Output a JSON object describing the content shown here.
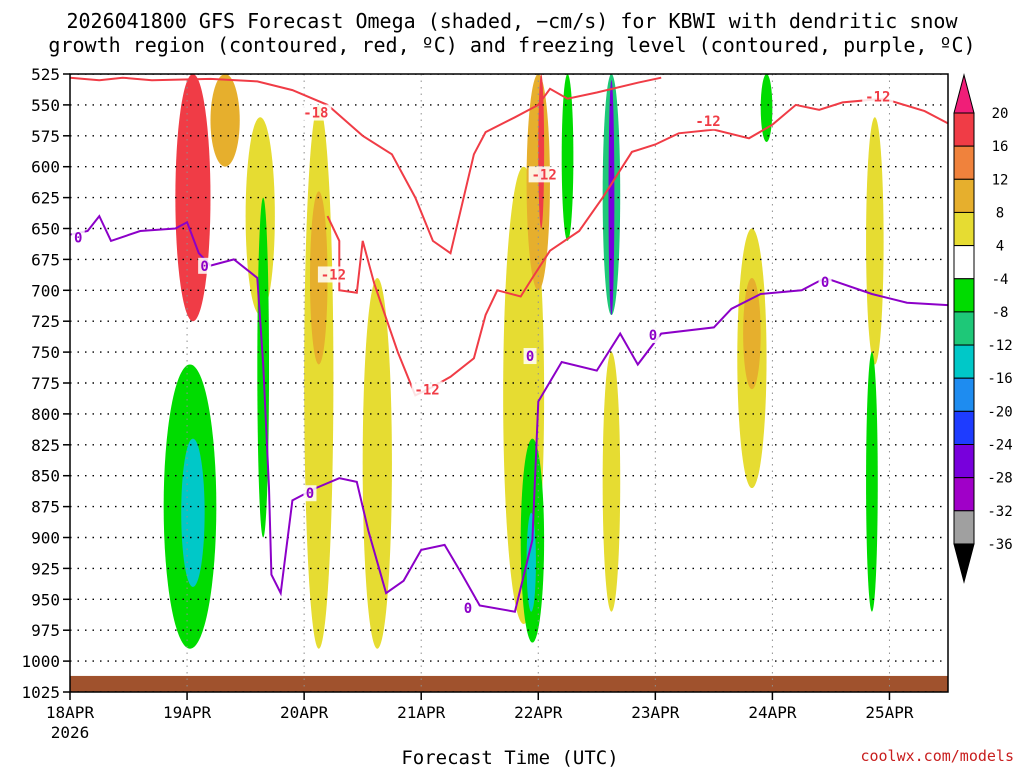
{
  "chart_data": {
    "type": "heatmap",
    "title_line1": "2026041800 GFS Forecast Omega (shaded, −cm/s) for KBWI with dendritic snow",
    "title_line2": "growth region (contoured, red, ºC) and freezing level (contoured, purple, ºC)",
    "xlabel": "Forecast Time (UTC)",
    "credit": "coolwx.com/models",
    "x_start_label": "18APR",
    "x_start_year": "2026",
    "x_ticks": [
      "19APR",
      "20APR",
      "21APR",
      "22APR",
      "23APR",
      "24APR",
      "25APR"
    ],
    "x_range_days": [
      0,
      7.5
    ],
    "y_ticks": [
      525,
      550,
      575,
      600,
      625,
      650,
      675,
      700,
      725,
      750,
      775,
      800,
      825,
      850,
      875,
      900,
      925,
      950,
      975,
      1000,
      1025
    ],
    "y_range_hpa": [
      525,
      1025
    ],
    "colorbar": {
      "labels": [
        "20",
        "16",
        "12",
        "8",
        "4",
        "-4",
        "-8",
        "-12",
        "-16",
        "-20",
        "-24",
        "-28",
        "-32",
        "-36"
      ],
      "bands": [
        {
          "min": 16,
          "max": 20,
          "color": "#f03c46"
        },
        {
          "min": 12,
          "max": 16,
          "color": "#f0823c"
        },
        {
          "min": 8,
          "max": 12,
          "color": "#e6af2d"
        },
        {
          "min": 4,
          "max": 8,
          "color": "#e6dc32"
        },
        {
          "min": -4,
          "max": 4,
          "color": "#ffffff"
        },
        {
          "min": -8,
          "max": -4,
          "color": "#00dc00"
        },
        {
          "min": -12,
          "max": -8,
          "color": "#1ec878"
        },
        {
          "min": -16,
          "max": -12,
          "color": "#00c8c8"
        },
        {
          "min": -20,
          "max": -16,
          "color": "#1e8cf0"
        },
        {
          "min": -24,
          "max": -20,
          "color": "#1e3cff"
        },
        {
          "min": -28,
          "max": -24,
          "color": "#7800dc"
        },
        {
          "min": -32,
          "max": -28,
          "color": "#a000c8"
        },
        {
          "min": -36,
          "max": -32,
          "color": "#a0a0a0"
        }
      ],
      "top_arrow_color": "#f01e78",
      "bottom_arrow_color": "#000000"
    },
    "colors": {
      "dgz": "#f03c46",
      "freezing": "#8c00c8",
      "ground": "#a0522d"
    },
    "surface_pressure_hpa": 1012,
    "contour_labels": [
      {
        "text": "-18",
        "color": "red",
        "d": 2.1,
        "p": 557
      },
      {
        "text": "-12",
        "color": "red",
        "d": 2.25,
        "p": 688
      },
      {
        "text": "-12",
        "color": "red",
        "d": 3.05,
        "p": 781
      },
      {
        "text": "-12",
        "color": "red",
        "d": 4.05,
        "p": 607
      },
      {
        "text": "-12",
        "color": "red",
        "d": 5.45,
        "p": 564
      },
      {
        "text": "-12",
        "color": "red",
        "d": 6.9,
        "p": 544
      },
      {
        "text": "0",
        "color": "purple",
        "d": 0.07,
        "p": 658
      },
      {
        "text": "0",
        "color": "purple",
        "d": 1.15,
        "p": 681
      },
      {
        "text": "0",
        "color": "purple",
        "d": 2.05,
        "p": 865
      },
      {
        "text": "0",
        "color": "purple",
        "d": 3.4,
        "p": 958
      },
      {
        "text": "0",
        "color": "purple",
        "d": 3.93,
        "p": 754
      },
      {
        "text": "0",
        "color": "purple",
        "d": 4.98,
        "p": 737
      },
      {
        "text": "0",
        "color": "purple",
        "d": 6.45,
        "p": 694
      }
    ],
    "dgz_top_series": [
      {
        "d": 0.0,
        "p": 528
      },
      {
        "d": 0.25,
        "p": 530
      },
      {
        "d": 0.45,
        "p": 528
      },
      {
        "d": 0.7,
        "p": 530
      },
      {
        "d": 1.2,
        "p": 529
      },
      {
        "d": 1.6,
        "p": 531
      },
      {
        "d": 1.9,
        "p": 538
      },
      {
        "d": 2.2,
        "p": 550
      },
      {
        "d": 2.5,
        "p": 575
      },
      {
        "d": 2.75,
        "p": 590
      },
      {
        "d": 2.95,
        "p": 625
      },
      {
        "d": 3.1,
        "p": 660
      },
      {
        "d": 3.25,
        "p": 670
      },
      {
        "d": 3.35,
        "p": 630
      },
      {
        "d": 3.45,
        "p": 590
      },
      {
        "d": 3.55,
        "p": 572
      },
      {
        "d": 3.8,
        "p": 560
      },
      {
        "d": 4.0,
        "p": 550
      },
      {
        "d": 4.1,
        "p": 537
      },
      {
        "d": 4.25,
        "p": 545
      },
      {
        "d": 4.5,
        "p": 540
      },
      {
        "d": 4.85,
        "p": 532
      },
      {
        "d": 5.05,
        "p": 528
      }
    ],
    "dgz_bottom_series": [
      {
        "d": 2.2,
        "p": 640
      },
      {
        "d": 2.3,
        "p": 660
      },
      {
        "d": 2.3,
        "p": 700
      },
      {
        "d": 2.45,
        "p": 702
      },
      {
        "d": 2.5,
        "p": 660
      },
      {
        "d": 2.6,
        "p": 695
      },
      {
        "d": 2.8,
        "p": 750
      },
      {
        "d": 2.95,
        "p": 785
      },
      {
        "d": 3.1,
        "p": 778
      },
      {
        "d": 3.25,
        "p": 770
      },
      {
        "d": 3.45,
        "p": 755
      },
      {
        "d": 3.55,
        "p": 720
      },
      {
        "d": 3.65,
        "p": 700
      },
      {
        "d": 3.85,
        "p": 705
      },
      {
        "d": 3.95,
        "p": 690
      },
      {
        "d": 4.1,
        "p": 668
      },
      {
        "d": 4.35,
        "p": 652
      },
      {
        "d": 4.55,
        "p": 625
      },
      {
        "d": 4.8,
        "p": 588
      },
      {
        "d": 5.0,
        "p": 582
      },
      {
        "d": 5.2,
        "p": 573
      },
      {
        "d": 5.5,
        "p": 570
      },
      {
        "d": 5.8,
        "p": 577
      },
      {
        "d": 6.0,
        "p": 566
      },
      {
        "d": 6.2,
        "p": 550
      },
      {
        "d": 6.4,
        "p": 554
      },
      {
        "d": 6.6,
        "p": 548
      },
      {
        "d": 6.95,
        "p": 545
      },
      {
        "d": 7.3,
        "p": 555
      },
      {
        "d": 7.5,
        "p": 565
      }
    ],
    "freezing_series": [
      {
        "d": 0.0,
        "p": 655
      },
      {
        "d": 0.15,
        "p": 652
      },
      {
        "d": 0.25,
        "p": 640
      },
      {
        "d": 0.35,
        "p": 660
      },
      {
        "d": 0.6,
        "p": 652
      },
      {
        "d": 0.9,
        "p": 650
      },
      {
        "d": 1.0,
        "p": 645
      },
      {
        "d": 1.1,
        "p": 670
      },
      {
        "d": 1.2,
        "p": 680
      },
      {
        "d": 1.4,
        "p": 675
      },
      {
        "d": 1.6,
        "p": 690
      },
      {
        "d": 1.65,
        "p": 760
      },
      {
        "d": 1.7,
        "p": 860
      },
      {
        "d": 1.72,
        "p": 930
      },
      {
        "d": 1.8,
        "p": 945
      },
      {
        "d": 1.9,
        "p": 870
      },
      {
        "d": 2.1,
        "p": 860
      },
      {
        "d": 2.3,
        "p": 852
      },
      {
        "d": 2.45,
        "p": 855
      },
      {
        "d": 2.55,
        "p": 895
      },
      {
        "d": 2.7,
        "p": 945
      },
      {
        "d": 2.85,
        "p": 935
      },
      {
        "d": 3.0,
        "p": 910
      },
      {
        "d": 3.2,
        "p": 906
      },
      {
        "d": 3.35,
        "p": 930
      },
      {
        "d": 3.5,
        "p": 955
      },
      {
        "d": 3.8,
        "p": 960
      },
      {
        "d": 3.95,
        "p": 902
      },
      {
        "d": 4.0,
        "p": 790
      },
      {
        "d": 4.2,
        "p": 758
      },
      {
        "d": 4.5,
        "p": 765
      },
      {
        "d": 4.7,
        "p": 735
      },
      {
        "d": 4.85,
        "p": 760
      },
      {
        "d": 5.05,
        "p": 735
      },
      {
        "d": 5.5,
        "p": 730
      },
      {
        "d": 5.65,
        "p": 715
      },
      {
        "d": 5.9,
        "p": 703
      },
      {
        "d": 6.25,
        "p": 700
      },
      {
        "d": 6.45,
        "p": 690
      },
      {
        "d": 6.85,
        "p": 703
      },
      {
        "d": 7.15,
        "p": 710
      },
      {
        "d": 7.5,
        "p": 712
      }
    ],
    "shading_features": [
      {
        "d0": 0.9,
        "d1": 1.2,
        "p0": 525,
        "p1": 725,
        "v": 16
      },
      {
        "d0": 0.95,
        "d1": 1.15,
        "p0": 600,
        "p1": 720,
        "v": 18
      },
      {
        "d0": 1.2,
        "d1": 1.45,
        "p0": 525,
        "p1": 600,
        "v": 10
      },
      {
        "d0": 1.5,
        "d1": 1.75,
        "p0": 560,
        "p1": 720,
        "v": 6
      },
      {
        "d0": 0.8,
        "d1": 1.25,
        "p0": 760,
        "p1": 990,
        "v": -6
      },
      {
        "d0": 0.95,
        "d1": 1.15,
        "p0": 820,
        "p1": 940,
        "v": -14
      },
      {
        "d0": 1.6,
        "d1": 1.7,
        "p0": 625,
        "p1": 900,
        "v": -6
      },
      {
        "d0": 2.0,
        "d1": 2.25,
        "p0": 550,
        "p1": 990,
        "v": 7
      },
      {
        "d0": 2.05,
        "d1": 2.2,
        "p0": 620,
        "p1": 760,
        "v": 10
      },
      {
        "d0": 2.5,
        "d1": 2.75,
        "p0": 690,
        "p1": 990,
        "v": 6
      },
      {
        "d0": 3.7,
        "d1": 4.05,
        "p0": 600,
        "p1": 970,
        "v": 6
      },
      {
        "d0": 3.9,
        "d1": 4.1,
        "p0": 525,
        "p1": 700,
        "v": 10
      },
      {
        "d0": 4.0,
        "d1": 4.05,
        "p0": 525,
        "p1": 650,
        "v": 18
      },
      {
        "d0": 3.85,
        "d1": 4.05,
        "p0": 820,
        "p1": 985,
        "v": -8
      },
      {
        "d0": 3.9,
        "d1": 3.98,
        "p0": 880,
        "p1": 960,
        "v": -14
      },
      {
        "d0": 4.2,
        "d1": 4.3,
        "p0": 525,
        "p1": 660,
        "v": -8
      },
      {
        "d0": 4.55,
        "d1": 4.7,
        "p0": 525,
        "p1": 720,
        "v": -10
      },
      {
        "d0": 4.6,
        "d1": 4.65,
        "p0": 530,
        "p1": 720,
        "v": -28
      },
      {
        "d0": 4.55,
        "d1": 4.7,
        "p0": 750,
        "p1": 960,
        "v": 5
      },
      {
        "d0": 5.7,
        "d1": 5.95,
        "p0": 650,
        "p1": 860,
        "v": 6
      },
      {
        "d0": 5.75,
        "d1": 5.9,
        "p0": 690,
        "p1": 780,
        "v": 10
      },
      {
        "d0": 5.9,
        "d1": 6.0,
        "p0": 525,
        "p1": 580,
        "v": -6
      },
      {
        "d0": 6.8,
        "d1": 6.95,
        "p0": 560,
        "p1": 760,
        "v": 6
      },
      {
        "d0": 6.8,
        "d1": 6.9,
        "p0": 750,
        "p1": 960,
        "v": -6
      }
    ]
  }
}
